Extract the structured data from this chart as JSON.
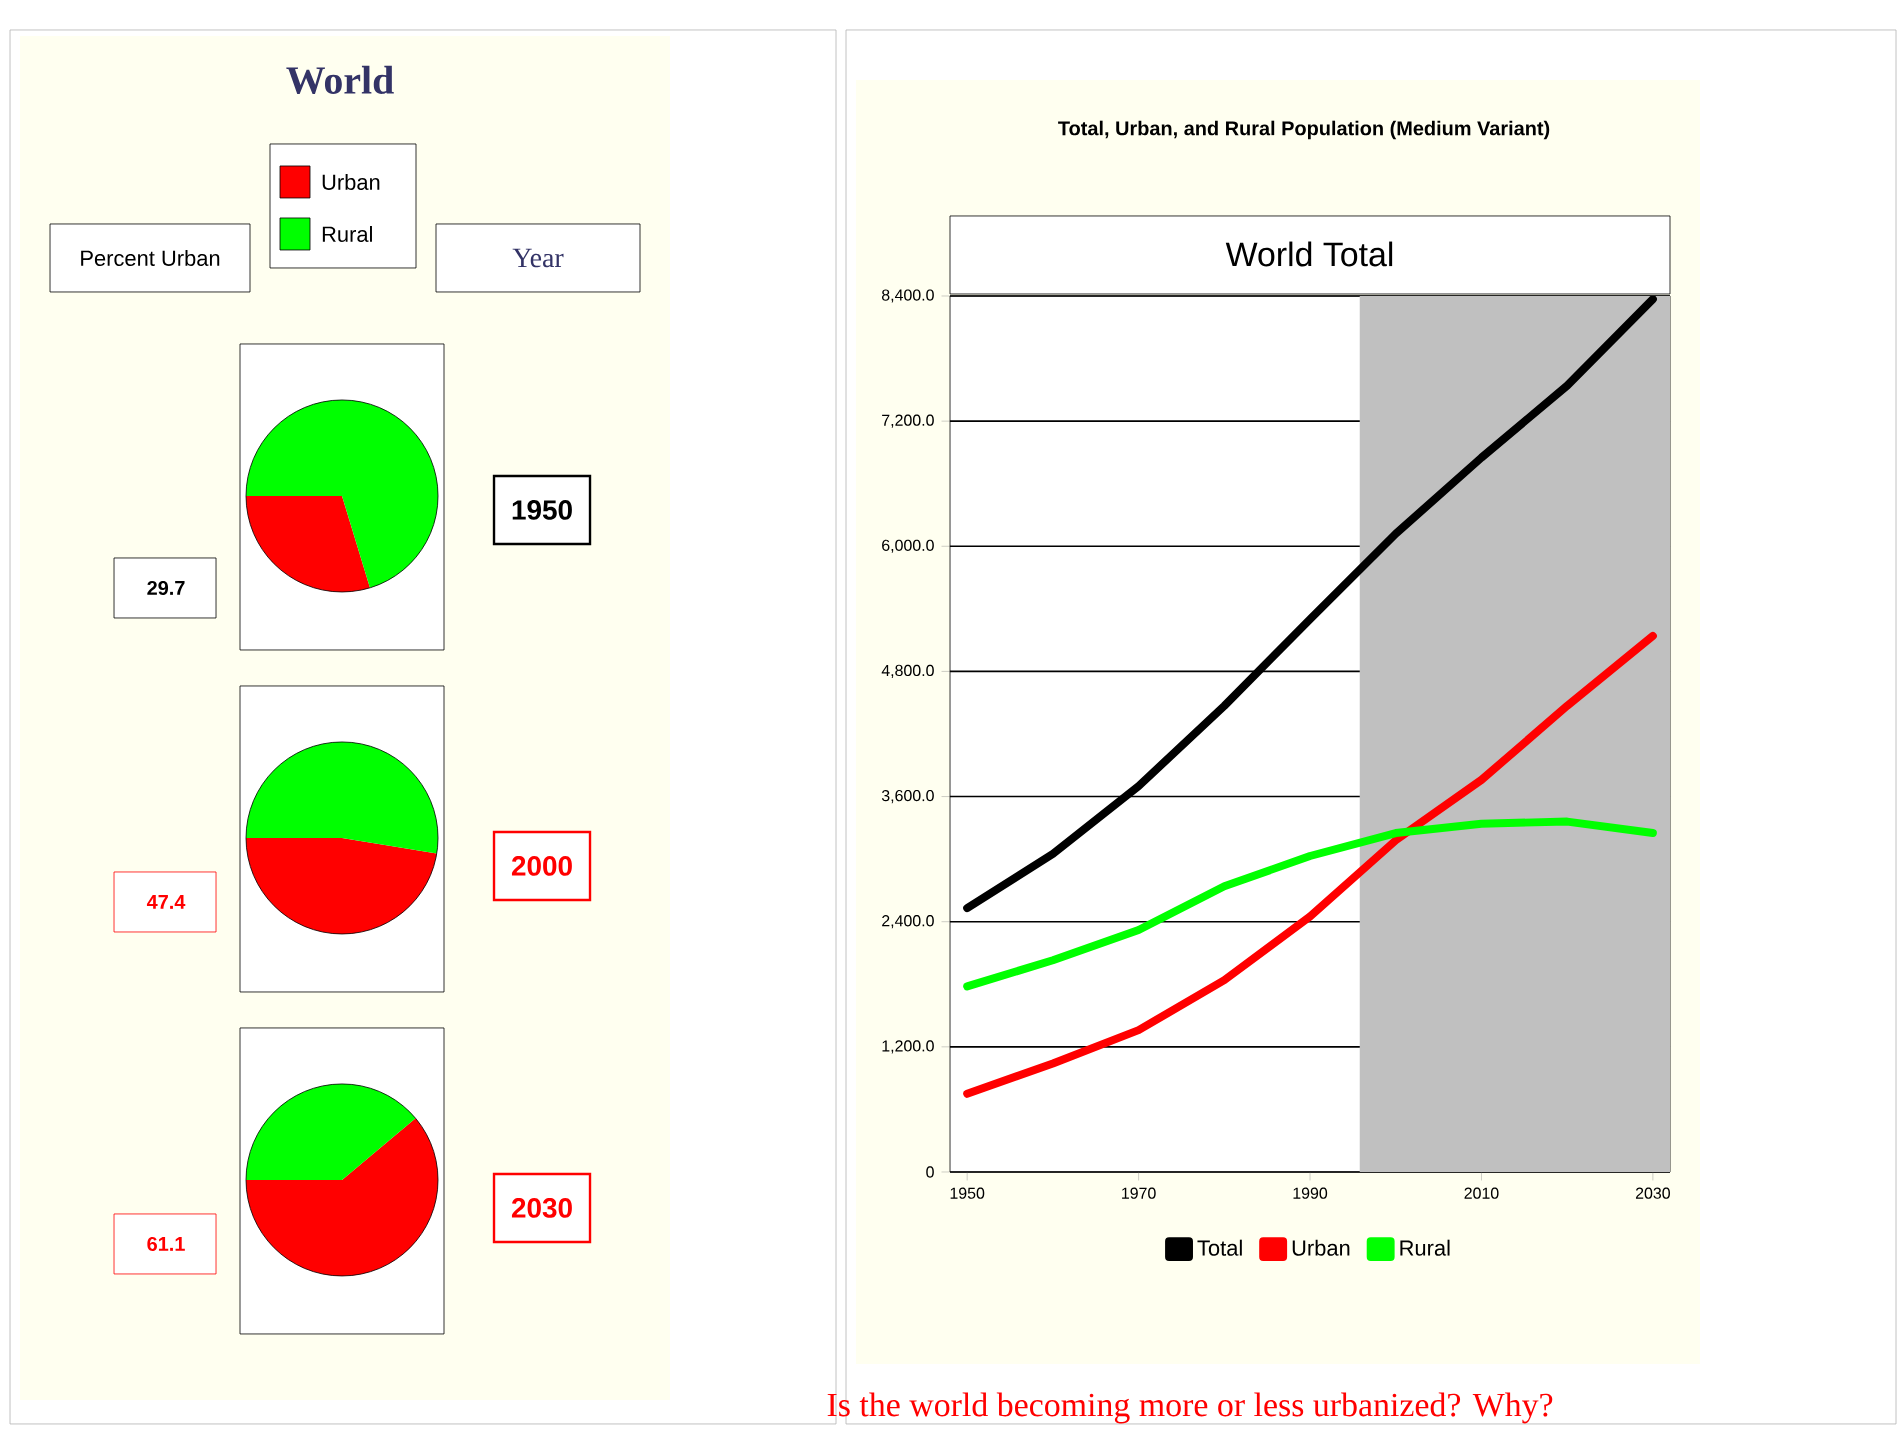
{
  "chart_data": [
    {
      "type": "other",
      "title": "World",
      "annotations": [
        "Percent Urban",
        "Year"
      ]
    },
    {
      "type": "pie",
      "title": "1950",
      "categories": [
        "Urban",
        "Rural"
      ],
      "values": [
        29.7,
        70.3
      ],
      "colors": [
        "#ff0000",
        "#00ff00"
      ],
      "value_labels": [
        "29.7",
        null
      ],
      "legend": "top"
    },
    {
      "type": "pie",
      "title": "2000",
      "categories": [
        null,
        null
      ],
      "values": [
        47.4,
        52.6
      ],
      "colors": [
        "#ff0000",
        "#00ff00"
      ],
      "value_labels": [
        "47.4",
        null
      ]
    },
    {
      "type": "pie",
      "title": "2030",
      "categories": [
        null,
        null
      ],
      "values": [
        61.1,
        38.9
      ],
      "colors": [
        "#ff0000",
        "#00ff00"
      ],
      "value_labels": [
        "61.1",
        null
      ]
    },
    {
      "type": "line",
      "title": "Total, Urban, and Rural Population (Medium Variant)",
      "subtitle": "World Total",
      "x": [
        1950,
        1960,
        1970,
        1980,
        1990,
        2000,
        2010,
        2020,
        2030
      ],
      "series": [
        {
          "name": "Total",
          "color": "#000000",
          "values": [
            2530,
            3050,
            3700,
            4470,
            5300,
            6120,
            6850,
            7540,
            8370
          ]
        },
        {
          "name": "Urban",
          "color": "#ff0000",
          "values": [
            750,
            1040,
            1360,
            1840,
            2450,
            3180,
            3760,
            4470,
            5140
          ]
        },
        {
          "name": "Rural",
          "color": "#00ff00",
          "values": [
            1780,
            2030,
            2320,
            2740,
            3030,
            3250,
            3340,
            3360,
            3250
          ]
        }
      ],
      "xlim": [
        1948,
        2032
      ],
      "ylim": [
        0,
        8400
      ],
      "xticks": [
        1950,
        1970,
        1990,
        2010,
        2030
      ],
      "yticks": [
        0,
        {
          "value": 1200,
          "label": "1,200.0"
        },
        {
          "value": 2400,
          "label": "2,400.0"
        },
        {
          "value": 3600,
          "label": "3,600.0"
        },
        {
          "value": 4800,
          "label": "4,800.0"
        },
        {
          "value": 6000,
          "label": "6,000.0"
        },
        {
          "value": 7200,
          "label": "7,200.0"
        },
        {
          "value": 8400,
          "label": "8,400.0"
        }
      ],
      "bands": [
        {
          "axis": "x",
          "from": 1995.8,
          "to": 2032,
          "color": "#c0c0c0"
        }
      ],
      "grid": "y",
      "legend": "bottom",
      "line_style": "solid",
      "annotations": [
        "Is the world becoming more or less urbanized?  Why?"
      ]
    }
  ]
}
